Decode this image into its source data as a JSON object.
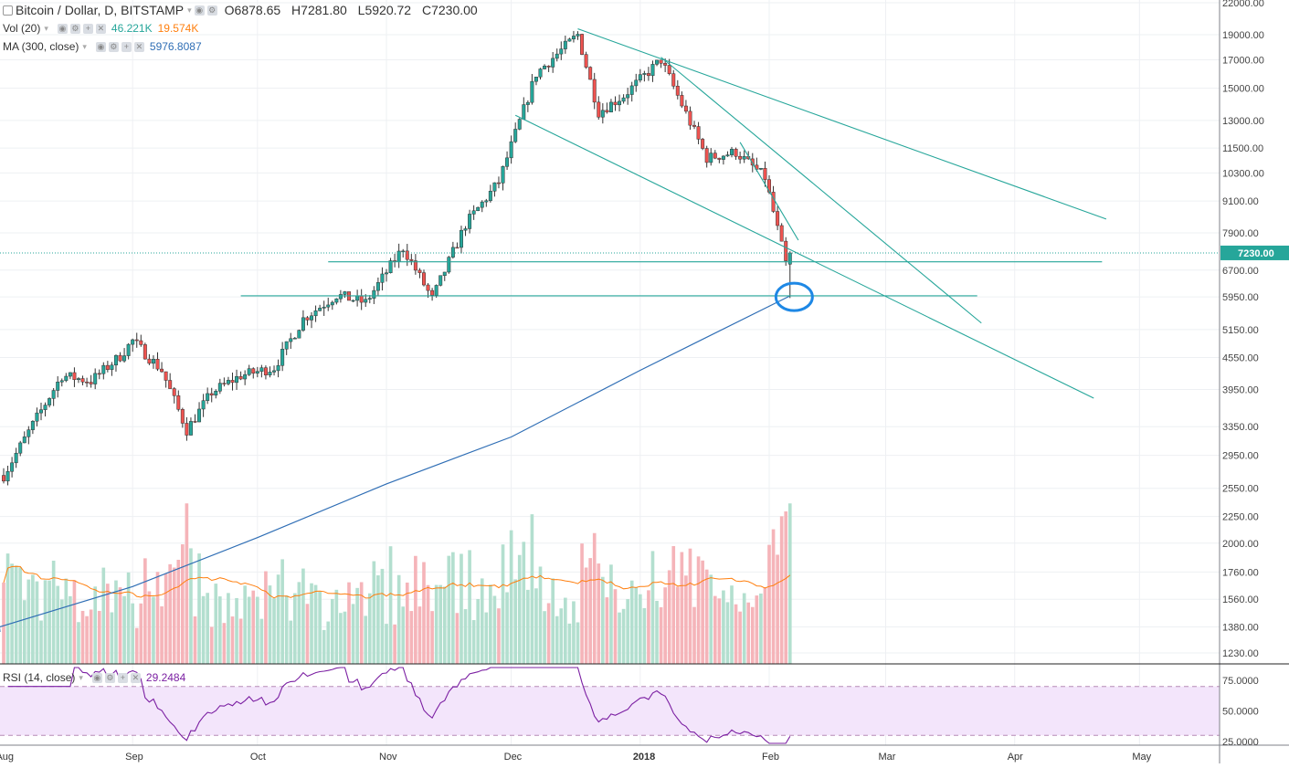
{
  "header": {
    "symbol": "Bitcoin / Dollar, D, BITSTAMP",
    "ohlc": [
      {
        "k": "O",
        "v": "6878.65"
      },
      {
        "k": "H",
        "v": "7281.80"
      },
      {
        "k": "L",
        "v": "5920.72"
      },
      {
        "k": "C",
        "v": "7230.00"
      }
    ]
  },
  "indicators": {
    "vol": {
      "label": "Vol (20)",
      "value1": "46.221K",
      "value2": "19.574K",
      "color1": "#26a69a",
      "color2": "#ff7f0e"
    },
    "ma": {
      "label": "MA (300, close)",
      "value": "5976.8087",
      "color": "#2f6eb5"
    },
    "rsi": {
      "label": "RSI (14, close)",
      "value": "29.2484",
      "color": "#7b1fa2"
    }
  },
  "price_axis": {
    "ticks": [
      "22000.00",
      "19000.00",
      "17000.00",
      "15000.00",
      "13000.00",
      "11500.00",
      "10300.00",
      "9100.00",
      "7900.00",
      "6700.00",
      "5950.00",
      "5150.00",
      "4550.00",
      "3950.00",
      "3350.00",
      "2950.00",
      "2550.00",
      "2250.00",
      "2000.00",
      "1760.00",
      "1560.00",
      "1380.00",
      "1230.00"
    ],
    "last_price": "7230.00",
    "last_price_color": "#26a69a"
  },
  "rsi_axis": {
    "ticks": [
      "75.0000",
      "50.0000",
      "25.0000"
    ]
  },
  "time_axis": {
    "ticks": [
      "Aug",
      "Sep",
      "Oct",
      "Nov",
      "Dec",
      "2018",
      "Feb",
      "Mar",
      "Apr",
      "May"
    ]
  },
  "colors": {
    "up": "#26a69a",
    "down": "#ef5350",
    "vol_up": "#b3dfcf",
    "vol_down": "#f5b4b9",
    "trendline": "#26a69a",
    "ma": "#2f6eb5",
    "vol_ma": "#ff7f0e",
    "rsi": "#7b1fa2",
    "rsi_band": "#f3e5fb",
    "circle": "#1e88e5"
  },
  "chart_data": {
    "type": "candlestick",
    "timeframe": "D",
    "x_range": [
      "2017-07-31",
      "2018-05-14"
    ],
    "y_scale": "log",
    "series_close_path": [
      {
        "date": "2017-08-01",
        "close": 2700
      },
      {
        "date": "2017-08-08",
        "close": 3380
      },
      {
        "date": "2017-08-15",
        "close": 4200
      },
      {
        "date": "2017-08-22",
        "close": 4100
      },
      {
        "date": "2017-08-29",
        "close": 4580
      },
      {
        "date": "2017-09-01",
        "close": 4900
      },
      {
        "date": "2017-09-08",
        "close": 4300
      },
      {
        "date": "2017-09-14",
        "close": 3300
      },
      {
        "date": "2017-09-20",
        "close": 3900
      },
      {
        "date": "2017-09-27",
        "close": 4200
      },
      {
        "date": "2017-10-05",
        "close": 4350
      },
      {
        "date": "2017-10-12",
        "close": 5400
      },
      {
        "date": "2017-10-20",
        "close": 6000
      },
      {
        "date": "2017-10-27",
        "close": 5800
      },
      {
        "date": "2017-11-05",
        "close": 7400
      },
      {
        "date": "2017-11-12",
        "close": 5900
      },
      {
        "date": "2017-11-20",
        "close": 8200
      },
      {
        "date": "2017-11-28",
        "close": 9900
      },
      {
        "date": "2017-12-07",
        "close": 16000
      },
      {
        "date": "2017-12-17",
        "close": 19000
      },
      {
        "date": "2017-12-22",
        "close": 13500
      },
      {
        "date": "2017-12-28",
        "close": 14500
      },
      {
        "date": "2018-01-06",
        "close": 17000
      },
      {
        "date": "2018-01-10",
        "close": 14500
      },
      {
        "date": "2018-01-17",
        "close": 11000
      },
      {
        "date": "2018-01-24",
        "close": 11300
      },
      {
        "date": "2018-01-31",
        "close": 10100
      },
      {
        "date": "2018-02-05",
        "close": 6900
      },
      {
        "date": "2018-02-06",
        "close": 7230
      }
    ],
    "moving_average_300": [
      {
        "date": "2017-07-31",
        "value": 1380
      },
      {
        "date": "2017-09-01",
        "value": 1650
      },
      {
        "date": "2017-10-01",
        "value": 2050
      },
      {
        "date": "2017-11-01",
        "value": 2600
      },
      {
        "date": "2017-12-01",
        "value": 3200
      },
      {
        "date": "2018-01-01",
        "value": 4300
      },
      {
        "date": "2018-02-06",
        "value": 5977
      }
    ],
    "volume": {
      "last": "46.221K",
      "ma20": "19.574K"
    },
    "rsi_14": {
      "last": 29.2484,
      "levels": [
        70,
        30
      ]
    },
    "annotations": {
      "horizontal_levels": [
        6950,
        5960
      ],
      "trendlines": 4,
      "circle": "around 2018-02-06 low near MA(300)"
    }
  }
}
